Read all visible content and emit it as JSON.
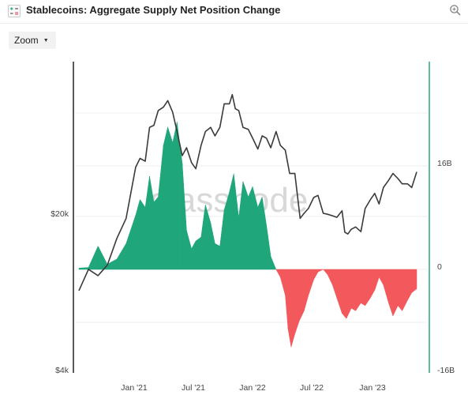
{
  "header": {
    "title": "Stablecoins: Aggregate Supply Net Position Change"
  },
  "toolbar": {
    "zoom_label": "Zoom"
  },
  "colors": {
    "positive": "#1fa67a",
    "negative": "#f2585c",
    "price_line": "#3a3a3a",
    "right_axis": "#27a980",
    "left_axis": "#222222"
  },
  "chart_data": {
    "type": "area",
    "title": "Stablecoins: Aggregate Supply Net Position Change",
    "watermark": "glassnode",
    "x_ticks": [
      "Jan '21",
      "Jul '21",
      "Jan '22",
      "Jul '22",
      "Jan '23"
    ],
    "left_axis": {
      "scale": "log",
      "ticks": [
        "$20k",
        "$4k"
      ]
    },
    "right_axis": {
      "ticks": [
        "16B",
        "0",
        "-16B"
      ],
      "ylim": [
        -16,
        16
      ],
      "unit": "B"
    },
    "series": [
      {
        "kind": "net_position_change",
        "unit": "B",
        "points": [
          [
            "2020-07-01",
            0.2
          ],
          [
            "2020-08-01",
            0.3
          ],
          [
            "2020-09-01",
            3.6
          ],
          [
            "2020-10-01",
            0.8
          ],
          [
            "2020-11-01",
            1.6
          ],
          [
            "2020-12-01",
            4.0
          ],
          [
            "2021-01-01",
            8.4
          ],
          [
            "2021-01-15",
            10.8
          ],
          [
            "2021-02-01",
            9.6
          ],
          [
            "2021-02-15",
            14.4
          ],
          [
            "2021-03-01",
            10.4
          ],
          [
            "2021-03-15",
            11.2
          ],
          [
            "2021-04-01",
            19.2
          ],
          [
            "2021-04-15",
            22.0
          ],
          [
            "2021-05-01",
            19.6
          ],
          [
            "2021-05-15",
            22.8
          ],
          [
            "2021-06-01",
            16.4
          ],
          [
            "2021-06-15",
            6.0
          ],
          [
            "2021-07-01",
            3.2
          ],
          [
            "2021-07-15",
            4.4
          ],
          [
            "2021-08-01",
            5.0
          ],
          [
            "2021-08-15",
            10.0
          ],
          [
            "2021-09-01",
            7.2
          ],
          [
            "2021-09-15",
            4.0
          ],
          [
            "2021-10-01",
            3.6
          ],
          [
            "2021-10-15",
            9.2
          ],
          [
            "2021-11-01",
            12.0
          ],
          [
            "2021-11-15",
            14.8
          ],
          [
            "2021-12-01",
            8.0
          ],
          [
            "2021-12-15",
            13.6
          ],
          [
            "2022-01-01",
            11.2
          ],
          [
            "2022-01-15",
            12.8
          ],
          [
            "2022-02-01",
            9.6
          ],
          [
            "2022-02-15",
            11.2
          ],
          [
            "2022-03-01",
            6.8
          ],
          [
            "2022-03-15",
            2.0
          ],
          [
            "2022-04-01",
            0.0
          ],
          [
            "2022-04-15",
            -1.2
          ],
          [
            "2022-05-01",
            -4.0
          ],
          [
            "2022-05-10",
            -9.2
          ],
          [
            "2022-05-20",
            -12.0
          ],
          [
            "2022-06-01",
            -10.0
          ],
          [
            "2022-06-15",
            -8.0
          ],
          [
            "2022-07-01",
            -6.4
          ],
          [
            "2022-07-15",
            -4.0
          ],
          [
            "2022-08-01",
            -1.6
          ],
          [
            "2022-08-15",
            -0.4
          ],
          [
            "2022-09-01",
            0.0
          ],
          [
            "2022-09-15",
            -0.8
          ],
          [
            "2022-10-01",
            -2.4
          ],
          [
            "2022-10-15",
            -4.4
          ],
          [
            "2022-11-01",
            -6.8
          ],
          [
            "2022-11-15",
            -7.6
          ],
          [
            "2022-12-01",
            -6.0
          ],
          [
            "2022-12-15",
            -6.4
          ],
          [
            "2023-01-01",
            -5.2
          ],
          [
            "2023-01-15",
            -5.6
          ],
          [
            "2023-02-01",
            -4.4
          ],
          [
            "2023-02-15",
            -3.2
          ],
          [
            "2023-03-01",
            -1.2
          ],
          [
            "2023-03-15",
            -2.4
          ],
          [
            "2023-04-01",
            -5.2
          ],
          [
            "2023-04-15",
            -7.2
          ],
          [
            "2023-05-01",
            -5.6
          ],
          [
            "2023-05-15",
            -6.4
          ],
          [
            "2023-06-01",
            -4.8
          ],
          [
            "2023-06-15",
            -3.6
          ],
          [
            "2023-07-01",
            -3.0
          ]
        ]
      },
      {
        "kind": "price",
        "unit": "USD",
        "points": [
          [
            "2020-07-01",
            9100
          ],
          [
            "2020-08-01",
            11300
          ],
          [
            "2020-09-01",
            10600
          ],
          [
            "2020-10-01",
            11800
          ],
          [
            "2020-11-01",
            15500
          ],
          [
            "2020-12-01",
            19000
          ],
          [
            "2021-01-01",
            32000
          ],
          [
            "2021-01-15",
            35000
          ],
          [
            "2021-02-01",
            34000
          ],
          [
            "2021-02-15",
            48000
          ],
          [
            "2021-03-01",
            49000
          ],
          [
            "2021-03-15",
            57000
          ],
          [
            "2021-04-01",
            59000
          ],
          [
            "2021-04-15",
            63000
          ],
          [
            "2021-05-01",
            56000
          ],
          [
            "2021-05-15",
            46000
          ],
          [
            "2021-06-01",
            36000
          ],
          [
            "2021-06-15",
            39000
          ],
          [
            "2021-07-01",
            33500
          ],
          [
            "2021-07-15",
            31500
          ],
          [
            "2021-08-01",
            40000
          ],
          [
            "2021-08-15",
            46000
          ],
          [
            "2021-09-01",
            48000
          ],
          [
            "2021-09-15",
            44000
          ],
          [
            "2021-10-01",
            48000
          ],
          [
            "2021-10-15",
            61000
          ],
          [
            "2021-11-01",
            61000
          ],
          [
            "2021-11-10",
            67000
          ],
          [
            "2021-11-20",
            58000
          ],
          [
            "2021-12-01",
            57000
          ],
          [
            "2021-12-15",
            48000
          ],
          [
            "2022-01-01",
            47000
          ],
          [
            "2022-01-15",
            43000
          ],
          [
            "2022-02-01",
            38500
          ],
          [
            "2022-02-15",
            44000
          ],
          [
            "2022-03-01",
            43000
          ],
          [
            "2022-03-15",
            39000
          ],
          [
            "2022-04-01",
            46000
          ],
          [
            "2022-04-15",
            40000
          ],
          [
            "2022-05-01",
            38000
          ],
          [
            "2022-05-15",
            30000
          ],
          [
            "2022-06-01",
            30000
          ],
          [
            "2022-06-18",
            19000
          ],
          [
            "2022-07-01",
            20000
          ],
          [
            "2022-07-15",
            21000
          ],
          [
            "2022-08-01",
            23500
          ],
          [
            "2022-08-15",
            24000
          ],
          [
            "2022-09-01",
            20000
          ],
          [
            "2022-09-15",
            19800
          ],
          [
            "2022-10-01",
            19500
          ],
          [
            "2022-10-15",
            19200
          ],
          [
            "2022-11-01",
            20500
          ],
          [
            "2022-11-10",
            16500
          ],
          [
            "2022-11-20",
            16200
          ],
          [
            "2022-12-01",
            17000
          ],
          [
            "2022-12-15",
            17400
          ],
          [
            "2023-01-01",
            16600
          ],
          [
            "2023-01-15",
            21000
          ],
          [
            "2023-02-01",
            23000
          ],
          [
            "2023-02-15",
            24500
          ],
          [
            "2023-03-01",
            22000
          ],
          [
            "2023-03-15",
            26000
          ],
          [
            "2023-04-01",
            28000
          ],
          [
            "2023-04-15",
            30000
          ],
          [
            "2023-05-01",
            28500
          ],
          [
            "2023-05-15",
            27000
          ],
          [
            "2023-06-01",
            27000
          ],
          [
            "2023-06-15",
            26000
          ],
          [
            "2023-07-01",
            30500
          ]
        ]
      }
    ]
  }
}
